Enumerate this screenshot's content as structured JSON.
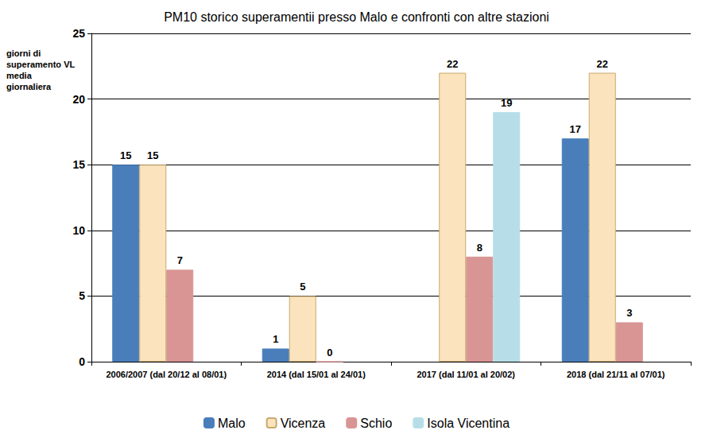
{
  "chart_data": {
    "type": "bar",
    "title": "PM10 storico superamentii presso Malo e confronti con altre stazioni",
    "y_label": "giorni di superamento VL media giornaliera",
    "categories": [
      "2006/2007 (dal 20/12 al 08/01)",
      "2014 (dal 15/01 al 24/01)",
      "2017 (dal 11/01 al 20/02)",
      "2018 (dal 21/11 al 07/01)"
    ],
    "series": [
      {
        "name": "Malo",
        "color": "#4a7ebb",
        "values": [
          15,
          1,
          null,
          17
        ]
      },
      {
        "name": "Vicenza",
        "color": "#fbe4bd",
        "values": [
          15,
          5,
          22,
          22
        ]
      },
      {
        "name": "Schio",
        "color": "#d99594",
        "values": [
          7,
          0,
          8,
          3
        ]
      },
      {
        "name": "Isola Vicentina",
        "color": "#b7dee8",
        "values": [
          null,
          null,
          19,
          null
        ]
      }
    ],
    "ylim": [
      0,
      25
    ],
    "yticks": [
      0,
      5,
      10,
      15,
      20,
      25
    ],
    "grid": true,
    "legend": "bottom",
    "data_labels": true
  }
}
